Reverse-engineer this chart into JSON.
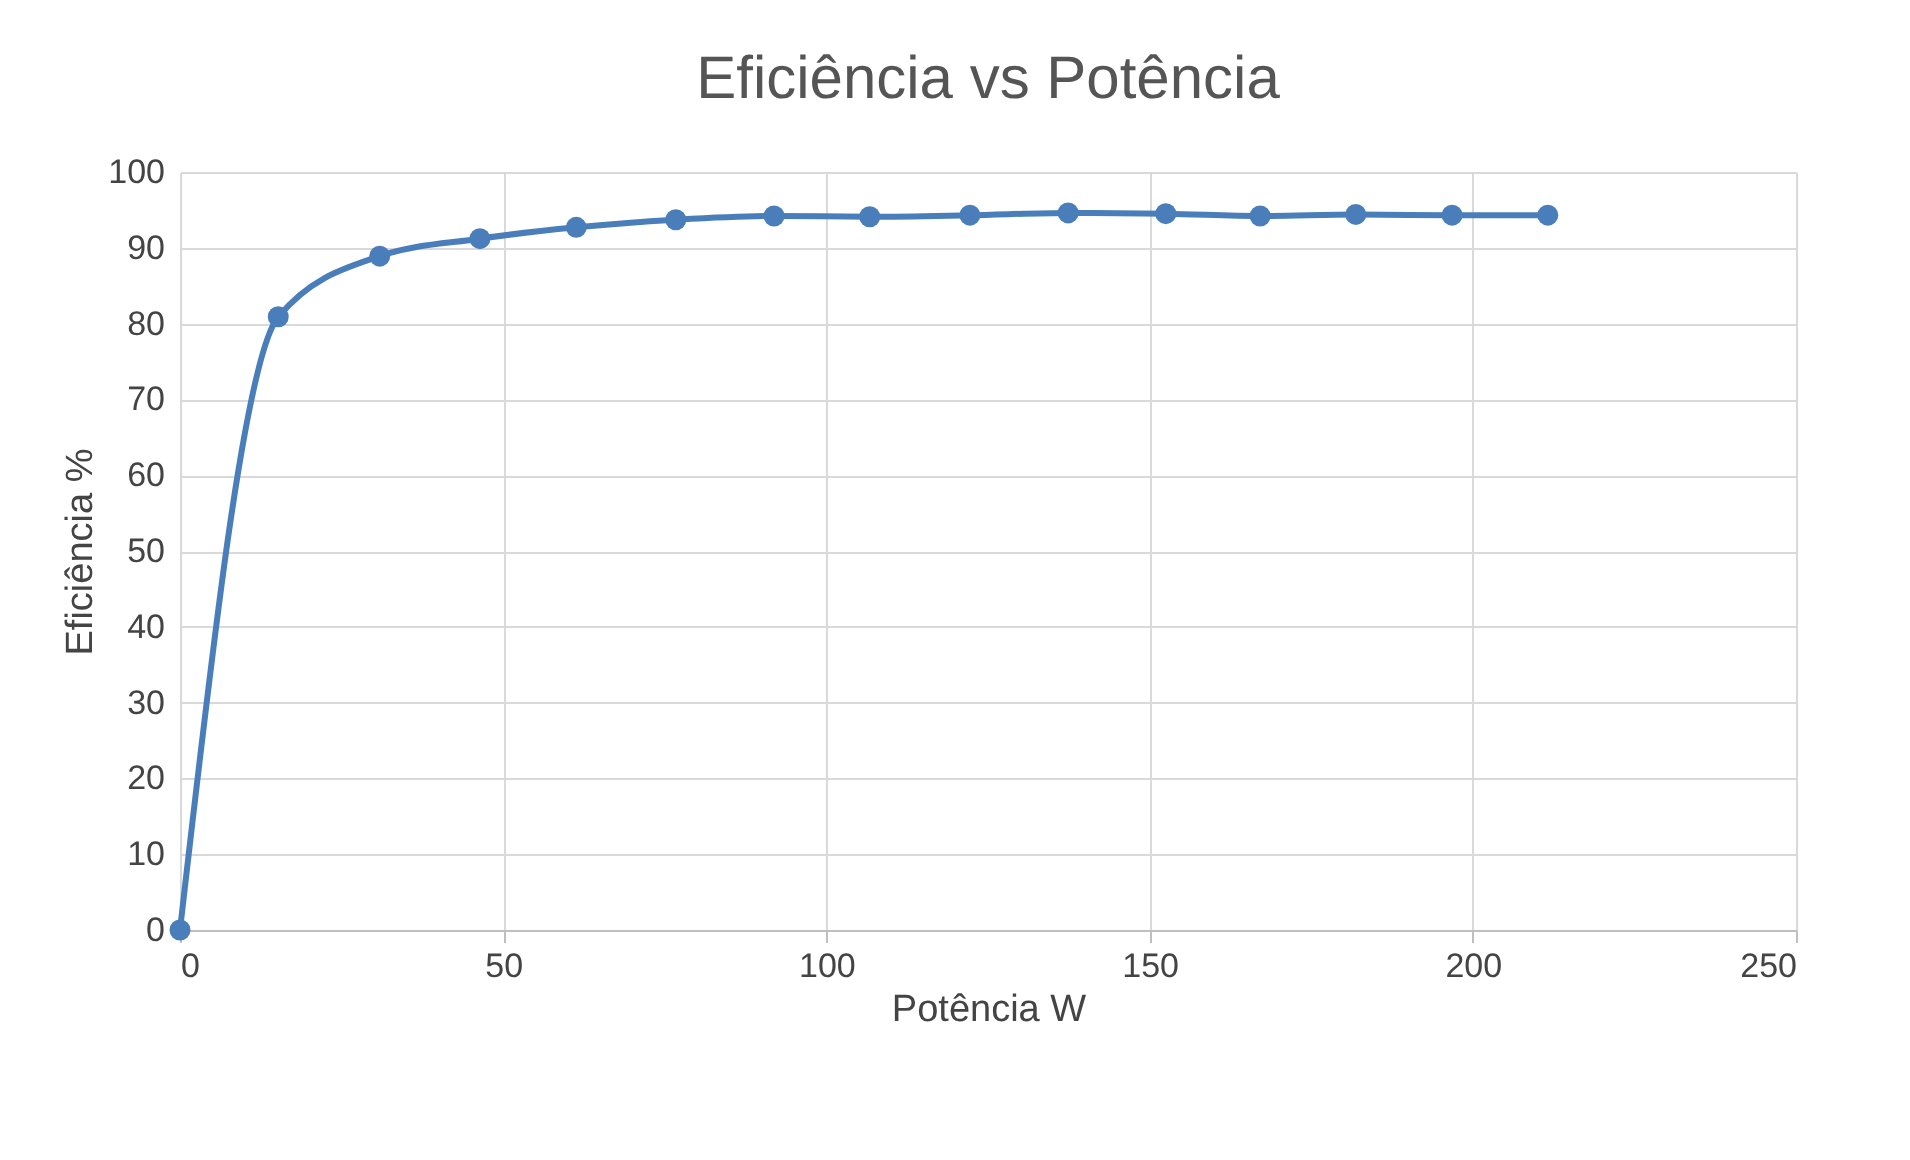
{
  "chart_data": {
    "type": "line",
    "title": "Eficiência vs Potência",
    "xlabel": "Potência W",
    "ylabel": "Eficiência %",
    "x": [
      0,
      15.2,
      30.9,
      46.4,
      61.3,
      76.7,
      91.9,
      106.7,
      122.2,
      137.4,
      152.5,
      167.1,
      181.9,
      196.8,
      211.6
    ],
    "series": [
      {
        "color": "#4a7ebb",
        "values": [
          0,
          80.9,
          88.9,
          91.2,
          92.7,
          93.7,
          94.2,
          94.1,
          94.3,
          94.6,
          94.5,
          94.2,
          94.4,
          94.3,
          94.3
        ]
      }
    ],
    "xlim": [
      0,
      250
    ],
    "xticks": [
      0,
      50,
      100,
      150,
      200,
      250
    ],
    "ylim": [
      0,
      100
    ],
    "yticks": [
      0,
      10,
      20,
      30,
      40,
      50,
      60,
      70,
      80,
      90,
      100
    ],
    "grid": true,
    "marker": "circle",
    "line_style": "solid"
  }
}
